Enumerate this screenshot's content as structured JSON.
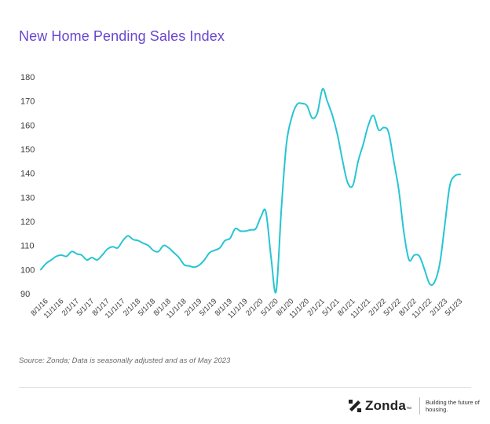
{
  "title": "New Home Pending Sales Index",
  "source": "Source: Zonda; Data is seasonally adjusted and as of May 2023",
  "logo": {
    "wordmark": "Zonda",
    "trademark": "™",
    "tagline": "Building the future of housing."
  },
  "colors": {
    "title": "#6a45d1",
    "line": "#27c5d3"
  },
  "chart_data": {
    "type": "line",
    "title": "New Home Pending Sales Index",
    "xlabel": "",
    "ylabel": "",
    "ylim": [
      90,
      180
    ],
    "yticks": [
      90,
      100,
      110,
      120,
      130,
      140,
      150,
      160,
      170,
      180
    ],
    "grid": false,
    "xtick_labels": [
      "8/1/16",
      "11/1/16",
      "2/1/17",
      "5/1/17",
      "8/1/17",
      "11/1/17",
      "2/1/18",
      "5/1/18",
      "8/1/18",
      "11/1/18",
      "2/1/19",
      "5/1/19",
      "8/1/19",
      "11/1/19",
      "2/1/20",
      "5/1/20",
      "8/1/20",
      "11/1/20",
      "2/1/21",
      "5/1/21",
      "8/1/21",
      "11/1/21",
      "2/1/22",
      "5/1/22",
      "8/1/22",
      "11/1/22",
      "2/1/23",
      "5/1/23"
    ],
    "x": [
      "7/1/16",
      "8/1/16",
      "9/1/16",
      "10/1/16",
      "11/1/16",
      "12/1/16",
      "1/1/17",
      "2/1/17",
      "3/1/17",
      "4/1/17",
      "5/1/17",
      "6/1/17",
      "7/1/17",
      "8/1/17",
      "9/1/17",
      "10/1/17",
      "11/1/17",
      "12/1/17",
      "1/1/18",
      "2/1/18",
      "3/1/18",
      "4/1/18",
      "5/1/18",
      "6/1/18",
      "7/1/18",
      "8/1/18",
      "9/1/18",
      "10/1/18",
      "11/1/18",
      "12/1/18",
      "1/1/19",
      "2/1/19",
      "3/1/19",
      "4/1/19",
      "5/1/19",
      "6/1/19",
      "7/1/19",
      "8/1/19",
      "9/1/19",
      "10/1/19",
      "11/1/19",
      "12/1/19",
      "1/1/20",
      "2/1/20",
      "3/1/20",
      "4/1/20",
      "5/1/20",
      "6/1/20",
      "7/1/20",
      "8/1/20",
      "9/1/20",
      "10/1/20",
      "11/1/20",
      "12/1/20",
      "1/1/21",
      "2/1/21",
      "3/1/21",
      "4/1/21",
      "5/1/21",
      "6/1/21",
      "7/1/21",
      "8/1/21",
      "9/1/21",
      "10/1/21",
      "11/1/21",
      "12/1/21",
      "1/1/22",
      "2/1/22",
      "3/1/22",
      "4/1/22",
      "5/1/22",
      "6/1/22",
      "7/1/22",
      "8/1/22",
      "9/1/22",
      "10/1/22",
      "11/1/22",
      "12/1/22",
      "1/1/23",
      "2/1/23",
      "3/1/23",
      "4/1/23",
      "5/1/23"
    ],
    "series": [
      {
        "values": [
          100,
          102.5,
          104,
          105.5,
          106,
          105.5,
          107.5,
          106.5,
          106,
          104,
          105,
          104,
          106,
          108.5,
          109.5,
          109,
          112,
          114,
          112.5,
          112,
          111,
          110,
          108,
          107.5,
          110,
          109,
          107,
          105,
          102,
          101.5,
          101,
          102,
          104,
          107,
          108,
          109,
          112,
          113,
          117,
          116,
          116,
          116.5,
          117,
          122,
          124,
          105,
          91,
          125,
          152,
          163,
          168.5,
          169,
          168,
          163,
          165,
          175,
          170,
          164,
          156,
          145,
          136,
          135,
          145,
          152,
          160,
          164,
          158,
          159,
          157,
          145,
          133,
          115,
          104,
          106,
          105.5,
          100,
          94,
          95,
          103,
          120,
          135,
          139,
          139.5
        ]
      }
    ]
  }
}
